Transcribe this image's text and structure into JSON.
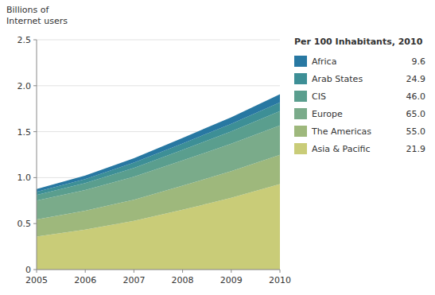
{
  "chart_data": {
    "type": "area",
    "stacked": true,
    "ylabel": "Billions of\nInternet users",
    "legend_title": "Per 100 Inhabitants, 2010",
    "legend": "right",
    "grid": true,
    "x": [
      2005,
      2006,
      2007,
      2008,
      2009,
      2010
    ],
    "xlim": [
      2005,
      2010
    ],
    "xticks": [
      2005,
      2006,
      2007,
      2008,
      2009,
      2010
    ],
    "ylim": [
      0,
      2.5
    ],
    "yticks": [
      0,
      0.5,
      {
        "value": 1,
        "label": "1.0"
      },
      1.5,
      {
        "value": 2,
        "label": "2.0"
      },
      2.5
    ],
    "series": [
      {
        "name": "Asia & Pacific",
        "color": "#c9cc78",
        "values": [
          0.36,
          0.435,
          0.53,
          0.65,
          0.78,
          0.93
        ],
        "per_100_inhabitants": {
          "value": 21.9,
          "label": "21.9"
        }
      },
      {
        "name": "The Americas",
        "color": "#9eb87c",
        "values": [
          0.185,
          0.205,
          0.23,
          0.262,
          0.29,
          0.318
        ],
        "per_100_inhabitants": {
          "value": 55,
          "label": "55.0"
        }
      },
      {
        "name": "Europe",
        "color": "#7aab8a",
        "values": [
          0.205,
          0.225,
          0.25,
          0.275,
          0.298,
          0.32
        ],
        "per_100_inhabitants": {
          "value": 65,
          "label": "65.0"
        }
      },
      {
        "name": "CIS",
        "color": "#5a9e8e",
        "values": [
          0.06,
          0.075,
          0.095,
          0.115,
          0.135,
          0.155
        ],
        "per_100_inhabitants": {
          "value": 46,
          "label": "46.0"
        }
      },
      {
        "name": "Arab States",
        "color": "#3d8f96",
        "values": [
          0.035,
          0.045,
          0.058,
          0.07,
          0.082,
          0.095
        ],
        "per_100_inhabitants": {
          "value": 24.9,
          "label": "24.9"
        }
      },
      {
        "name": "Africa",
        "color": "#2878a2",
        "values": [
          0.03,
          0.038,
          0.048,
          0.06,
          0.072,
          0.09
        ],
        "per_100_inhabitants": {
          "value": 9.6,
          "label": "9.6"
        }
      }
    ]
  }
}
